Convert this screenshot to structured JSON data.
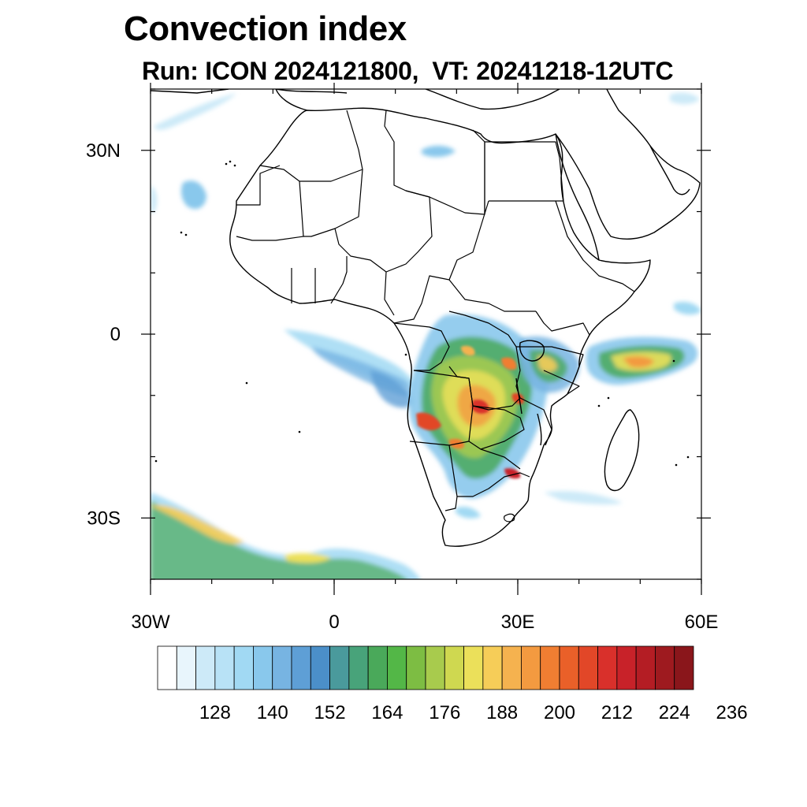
{
  "title": "Convection index",
  "subtitle": "Run: ICON 2024121800,  VT: 20241218-12UTC",
  "map": {
    "lon_range": [
      -30,
      60
    ],
    "lat_range": [
      -40,
      40
    ],
    "lat_ticks": [
      {
        "value": 30,
        "label": "30N"
      },
      {
        "value": 0,
        "label": "0"
      },
      {
        "value": -30,
        "label": "30S"
      }
    ],
    "lon_ticks": [
      {
        "value": -30,
        "label": "30W"
      },
      {
        "value": 0,
        "label": "0"
      },
      {
        "value": 30,
        "label": "30E"
      },
      {
        "value": 60,
        "label": "60E"
      }
    ]
  },
  "colorbar": {
    "colors": [
      "#ffffff",
      "#e8f5fc",
      "#cdeaf8",
      "#b8e2f6",
      "#a1d9f3",
      "#89c8ec",
      "#77b4e2",
      "#5e9fd6",
      "#4b8fc9",
      "#4a9a9c",
      "#48a37a",
      "#4aa95a",
      "#53b747",
      "#7dbd43",
      "#a8cb4d",
      "#cfd850",
      "#ebe05a",
      "#f6cd58",
      "#f5b24f",
      "#f39a40",
      "#f07e32",
      "#ea6029",
      "#e24728",
      "#d9302b",
      "#c82229",
      "#b41d24",
      "#9e1a1f",
      "#8a161b"
    ],
    "labels": [
      "128",
      "140",
      "152",
      "164",
      "176",
      "188",
      "200",
      "212",
      "224",
      "236"
    ]
  }
}
